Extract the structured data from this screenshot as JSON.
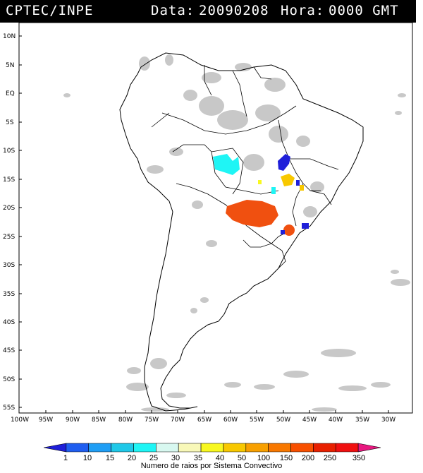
{
  "header": {
    "source": "CPTEC/INPE",
    "date_label": "Data:",
    "date": "20090208",
    "hour_label": "Hora:",
    "hour": "0000 GMT"
  },
  "map": {
    "lat_ticks": [
      "10N",
      "5N",
      "EQ",
      "5S",
      "10S",
      "15S",
      "20S",
      "25S",
      "30S",
      "35S",
      "40S",
      "45S",
      "50S",
      "55S"
    ],
    "lon_ticks": [
      "100W",
      "95W",
      "90W",
      "85W",
      "80W",
      "75W",
      "70W",
      "65W",
      "60W",
      "55W",
      "50W",
      "45W",
      "40W",
      "35W",
      "30W"
    ]
  },
  "legend": {
    "title": "Numero de raios por Sistema Convectivo",
    "labels": [
      "1",
      "10",
      "15",
      "20",
      "25",
      "30",
      "35",
      "40",
      "50",
      "100",
      "150",
      "200",
      "250",
      "350"
    ],
    "colors": [
      "#1f1fd9",
      "#1f5ef0",
      "#1f9ef5",
      "#1fc8e8",
      "#1ff5f5",
      "#d8f8f0",
      "#f8f8b8",
      "#f8f820",
      "#f8c800",
      "#f8a000",
      "#f87800",
      "#f85000",
      "#e82000",
      "#f01010",
      "#e81880"
    ]
  },
  "systems": [
    {
      "label": "cyan cluster",
      "color": "#1ff5f5"
    },
    {
      "label": "blue cluster",
      "color": "#1f1fd9"
    },
    {
      "label": "orange cluster",
      "color": "#f05010"
    },
    {
      "label": "yellow cluster",
      "color": "#f8c800"
    }
  ]
}
